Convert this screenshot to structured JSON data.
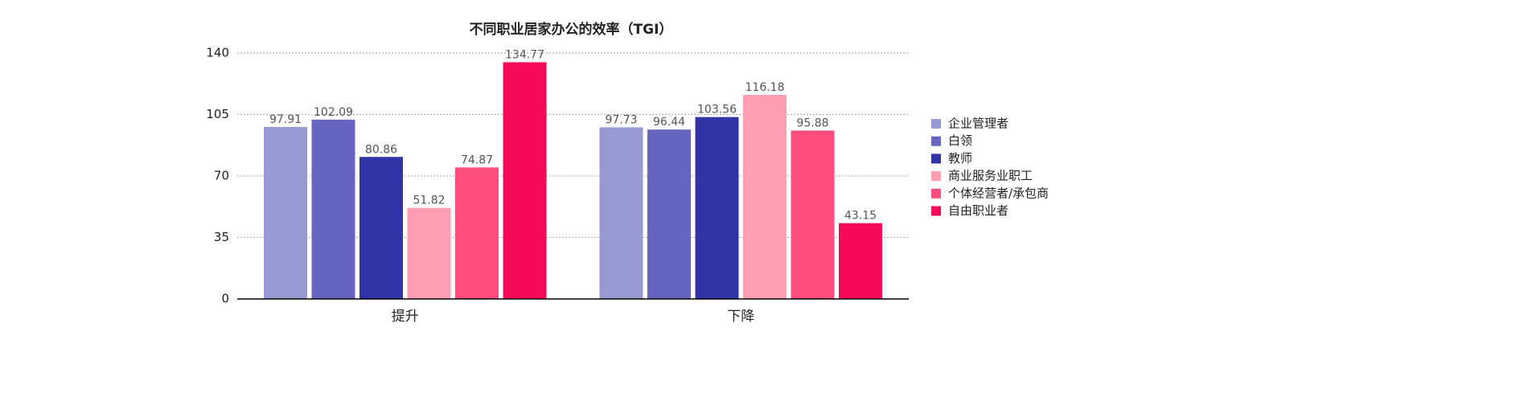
{
  "chart_data": {
    "type": "bar",
    "title": "不同职业居家办公的效率（TGI）",
    "categories": [
      "提升",
      "下降"
    ],
    "series": [
      {
        "name": "企业管理者",
        "color": "#9999d4",
        "values": [
          97.91,
          97.73
        ]
      },
      {
        "name": "白领",
        "color": "#6666c0",
        "values": [
          102.09,
          96.44
        ]
      },
      {
        "name": "教师",
        "color": "#3333a8",
        "values": [
          80.86,
          103.56
        ]
      },
      {
        "name": "商业服务业职工",
        "color": "#ff9db5",
        "values": [
          51.82,
          116.18
        ]
      },
      {
        "name": "个体经营者/承包商",
        "color": "#ff4d7d",
        "values": [
          74.87,
          95.88
        ]
      },
      {
        "name": "自由职业者",
        "color": "#f50a5a",
        "values": [
          134.77,
          43.15
        ]
      }
    ],
    "ylim": [
      0,
      140
    ],
    "yticks": [
      0,
      35,
      70,
      105,
      140
    ],
    "grid": true,
    "legend": "right"
  }
}
